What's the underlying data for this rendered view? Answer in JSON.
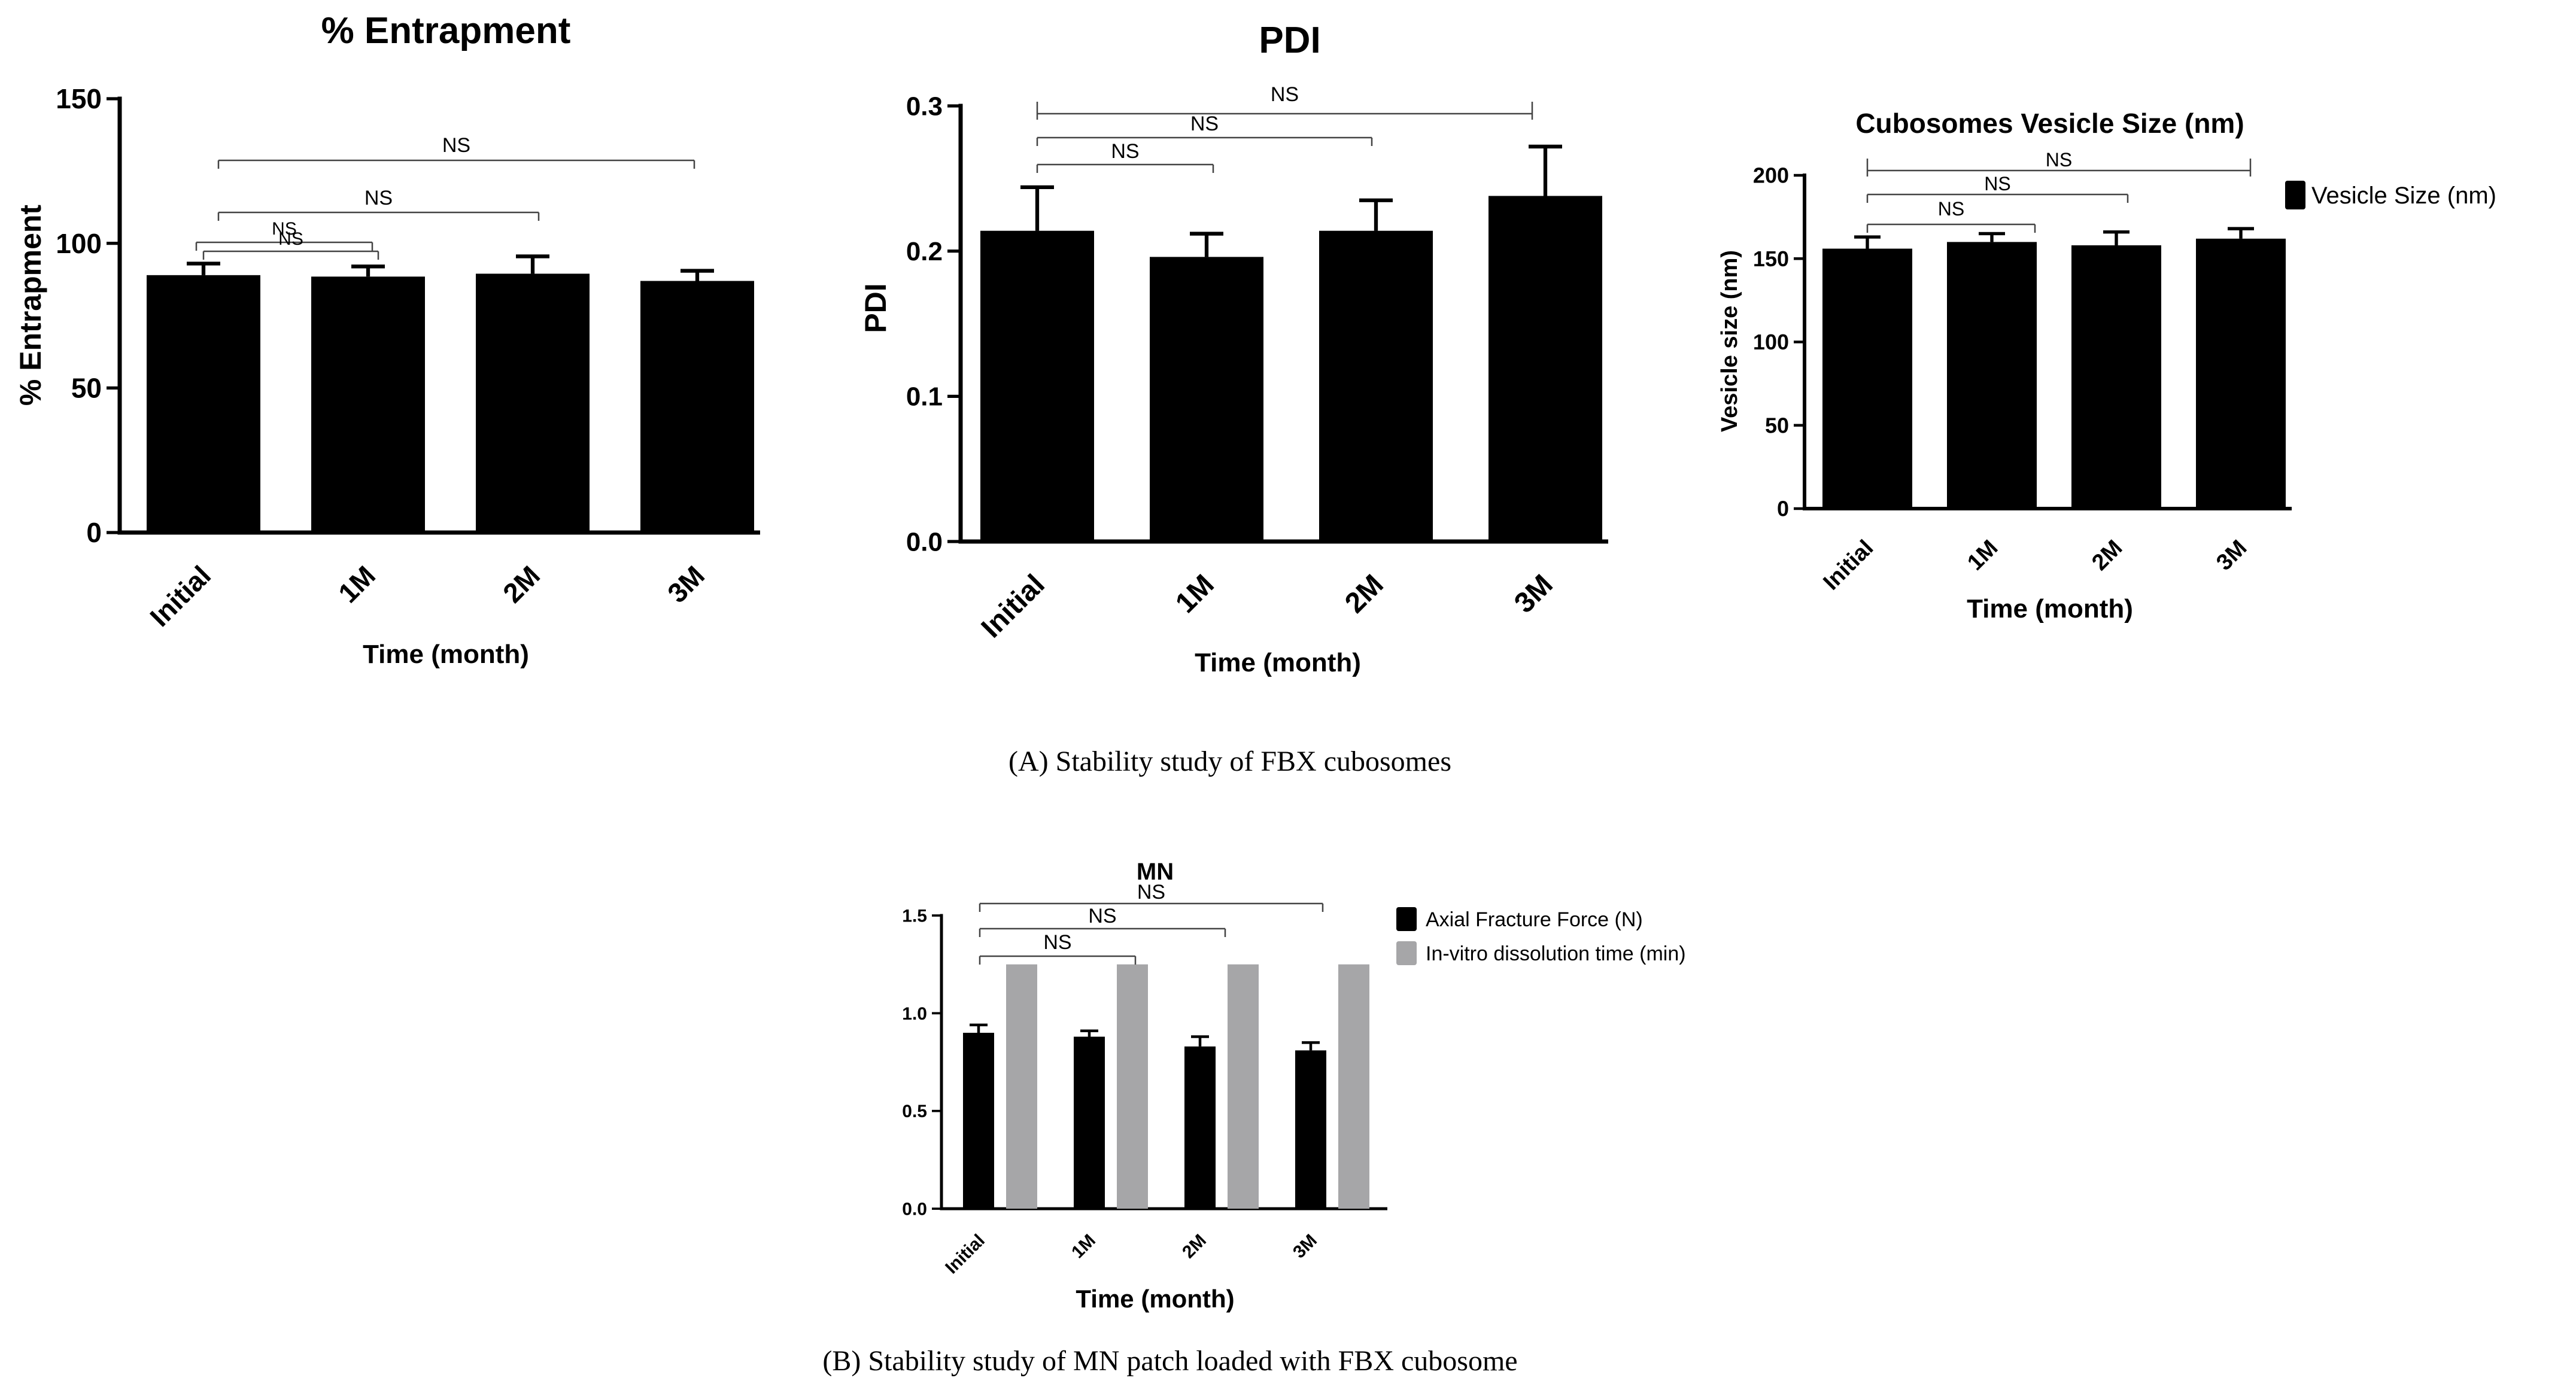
{
  "chart_data": [
    {
      "type": "bar",
      "title": "% Entrapment",
      "xlabel": "Time (month)",
      "ylabel": "% Entrapment",
      "categories": [
        "Initial",
        "1M",
        "2M",
        "3M"
      ],
      "values": [
        89,
        88.5,
        89.5,
        87
      ],
      "errors": [
        4,
        3.5,
        6,
        3.5
      ],
      "ylim": [
        0,
        150
      ],
      "yticks": [
        0,
        50,
        100,
        150
      ],
      "ytick_labels": [
        "0",
        "50",
        "100",
        "150"
      ],
      "color": "#000000",
      "significance": [
        {
          "from": 0,
          "to": 1,
          "label": "NS"
        },
        {
          "from": 0,
          "to": 1,
          "label": "NS"
        },
        {
          "from": 0,
          "to": 2,
          "label": "NS"
        },
        {
          "from": 0,
          "to": 3,
          "label": "NS"
        }
      ]
    },
    {
      "type": "bar",
      "title": "PDI",
      "xlabel": "Time (month)",
      "ylabel": "PDI",
      "categories": [
        "Initial",
        "1M",
        "2M",
        "3M"
      ],
      "values": [
        0.214,
        0.196,
        0.214,
        0.238
      ],
      "errors": [
        0.03,
        0.016,
        0.021,
        0.034
      ],
      "ylim": [
        0,
        0.3
      ],
      "yticks": [
        0,
        0.1,
        0.2,
        0.3
      ],
      "ytick_labels": [
        "0.0",
        "0.1",
        "0.2",
        "0.3"
      ],
      "color": "#000000",
      "significance": [
        {
          "from": 0,
          "to": 1,
          "label": "NS"
        },
        {
          "from": 0,
          "to": 2,
          "label": "NS"
        },
        {
          "from": 0,
          "to": 3,
          "label": "NS"
        }
      ]
    },
    {
      "type": "bar",
      "title": "Cubosomes Vesicle Size (nm)",
      "xlabel": "Time (month)",
      "ylabel": "Vesicle size (nm)",
      "categories": [
        "Initial",
        "1M",
        "2M",
        "3M"
      ],
      "values": [
        156,
        160,
        158,
        162
      ],
      "errors": [
        7,
        5,
        8,
        6
      ],
      "ylim": [
        0,
        200
      ],
      "yticks": [
        0,
        50,
        100,
        150,
        200
      ],
      "ytick_labels": [
        "0",
        "50",
        "100",
        "150",
        "200"
      ],
      "color": "#000000",
      "legend": [
        {
          "label": "Vesicle Size (nm)",
          "color": "#000000"
        }
      ],
      "significance": [
        {
          "from": 0,
          "to": 1,
          "label": "NS"
        },
        {
          "from": 0,
          "to": 2,
          "label": "NS"
        },
        {
          "from": 0,
          "to": 3,
          "label": "NS"
        }
      ]
    },
    {
      "type": "bar",
      "title": "MN",
      "xlabel": "Time (month)",
      "ylabel": "",
      "categories": [
        "Initial",
        "1M",
        "2M",
        "3M"
      ],
      "ylim": [
        0,
        1.5
      ],
      "yticks": [
        0,
        0.5,
        1,
        1.5
      ],
      "ytick_labels": [
        "0.0",
        "0.5",
        "1.0",
        "1.5"
      ],
      "series": [
        {
          "name": "Axial Fracture Force (N)",
          "values": [
            0.9,
            0.88,
            0.83,
            0.81
          ],
          "errors": [
            0.04,
            0.03,
            0.05,
            0.04
          ],
          "color": "#000000"
        },
        {
          "name": "In-vitro dissolution time (min)",
          "values": [
            1.25,
            1.25,
            1.25,
            1.25
          ],
          "errors": [
            0,
            0,
            0,
            0
          ],
          "color": "#a6a6a8"
        }
      ],
      "significance": [
        {
          "from": 0,
          "to": 1,
          "label": "NS"
        },
        {
          "from": 0,
          "to": 2,
          "label": "NS"
        },
        {
          "from": 0,
          "to": 3,
          "label": "NS"
        }
      ]
    }
  ],
  "captions": {
    "a": "(A) Stability study of FBX cubosomes",
    "b": "(B) Stability study of MN patch loaded with FBX cubosome"
  }
}
